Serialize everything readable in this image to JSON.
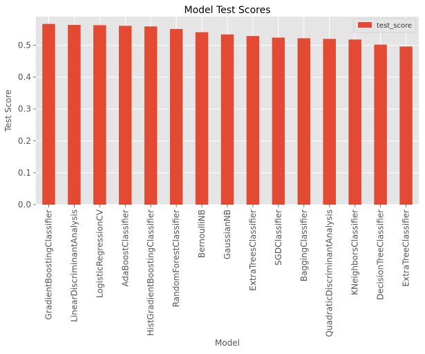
{
  "chart_data": {
    "type": "bar",
    "title": "Model Test Scores",
    "xlabel": "Model",
    "ylabel": "Test Score",
    "ylim": [
      0,
      0.59
    ],
    "yticks": [
      "0.0",
      "0.1",
      "0.2",
      "0.3",
      "0.4",
      "0.5"
    ],
    "grid": true,
    "legend_position": "top-right",
    "categories": [
      "GradientBoostingClassifier",
      "LinearDiscriminantAnalysis",
      "LogisticRegressionCV",
      "AdaBoostClassifier",
      "HistGradientBoostingClassifier",
      "RandomForestClassifier",
      "BernoulliNB",
      "GaussianNB",
      "ExtraTreesClassifier",
      "SGDClassifier",
      "BaggingClassifier",
      "QuadraticDiscriminantAnalysis",
      "KNeighborsClassifier",
      "DecisionTreeClassifier",
      "ExtraTreeClassifier"
    ],
    "series": [
      {
        "name": "test_score",
        "color": "#E24A33",
        "values": [
          0.567,
          0.564,
          0.563,
          0.561,
          0.559,
          0.551,
          0.541,
          0.534,
          0.529,
          0.524,
          0.522,
          0.52,
          0.518,
          0.502,
          0.496
        ]
      }
    ],
    "background_color": "#E5E5E5",
    "grid_color": "#FFFFFF"
  }
}
